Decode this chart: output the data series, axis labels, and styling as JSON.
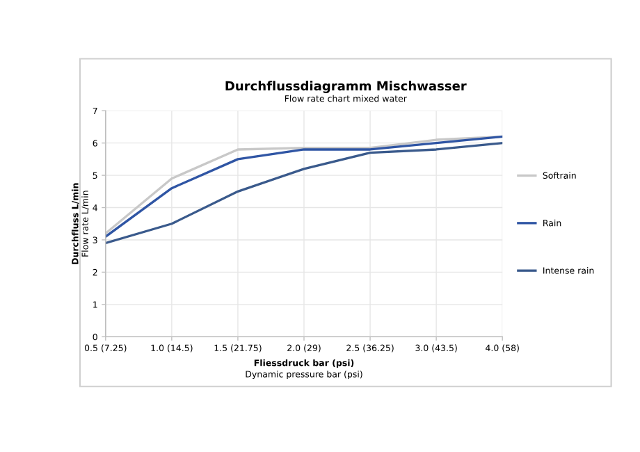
{
  "chart_data": {
    "type": "line",
    "title": "Durchflussdiagramm Mischwasser",
    "subtitle": "Flow rate chart mixed water",
    "xlabel": "Fliessdruck bar (psi)\nDynamic pressure bar (psi)",
    "ylabel": "Durchfluss L/min\nFlow rate L/min",
    "categories": [
      "0.5 (7.25)",
      "1.0 (14.5)",
      "1.5 (21.75)",
      "2.0 (29)",
      "2.5 (36.25)",
      "3.0 (43.5)",
      "4.0 (58)"
    ],
    "series": [
      {
        "name": "Softrain",
        "color": "#c8c8c8",
        "values": [
          3.2,
          4.9,
          5.8,
          5.85,
          5.85,
          6.1,
          6.2
        ]
      },
      {
        "name": "Rain",
        "color": "#2f55a4",
        "values": [
          3.1,
          4.6,
          5.5,
          5.8,
          5.8,
          6.0,
          6.2
        ]
      },
      {
        "name": "Intense rain",
        "color": "#3a5a8c",
        "values": [
          2.9,
          3.5,
          4.5,
          5.2,
          5.7,
          5.8,
          6.0
        ]
      }
    ],
    "ylim": [
      0,
      7
    ],
    "yticks": [
      0,
      1,
      2,
      3,
      4,
      5,
      6,
      7
    ],
    "grid": true,
    "legend": "right",
    "marker": "none",
    "line_style": "solid"
  }
}
